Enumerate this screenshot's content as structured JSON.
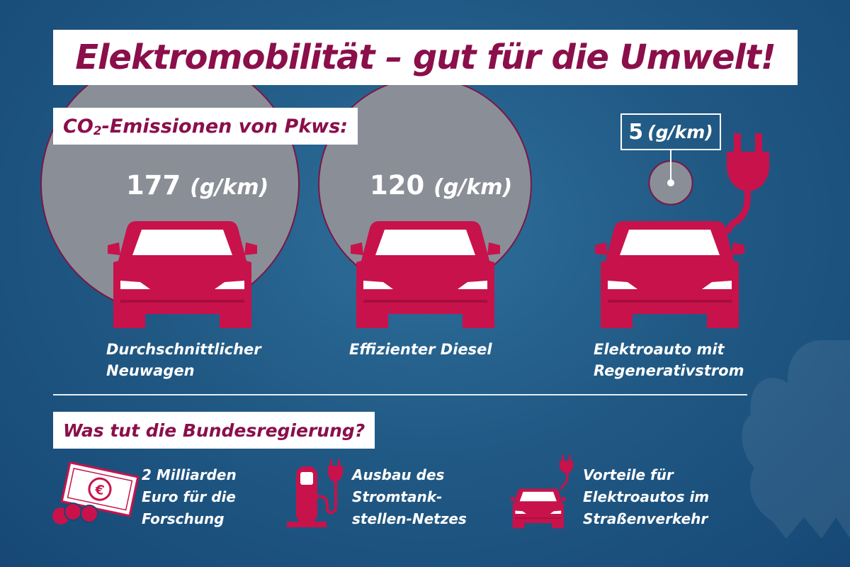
{
  "title": "Elektromobilität – gut für die Umwelt!",
  "emissions_heading": {
    "prefix": "CO",
    "subscript": "2",
    "suffix": "-Emissionen von Pkws:"
  },
  "chart_data": {
    "type": "bubble",
    "unit": "(g/km)",
    "items": [
      {
        "value": "177",
        "label_lines": [
          "Durchschnittlicher",
          "Neuwagen"
        ]
      },
      {
        "value": "120",
        "label_lines": [
          "Effizienter Diesel"
        ]
      },
      {
        "value": "5",
        "label_lines": [
          "Elektroauto mit",
          "Regenerativstrom"
        ]
      }
    ]
  },
  "government": {
    "heading": "Was tut die Bundesregierung?",
    "actions": [
      {
        "icon": "euro-banknote-icon",
        "lines": [
          "2 Milliarden",
          "Euro für die",
          "Forschung"
        ]
      },
      {
        "icon": "charging-station-icon",
        "lines": [
          "Ausbau des",
          "Stromtank-",
          "stellen-Netzes"
        ]
      },
      {
        "icon": "electric-car-plug-icon",
        "lines": [
          "Vorteile für",
          "Elektroautos im",
          "Straßenverkehr"
        ]
      }
    ]
  },
  "colors": {
    "accent": "#c8124b",
    "title": "#8a0f4a",
    "bubble": "#8a8f97",
    "bubble_outline": "#7a1747",
    "background": "#215a85"
  }
}
